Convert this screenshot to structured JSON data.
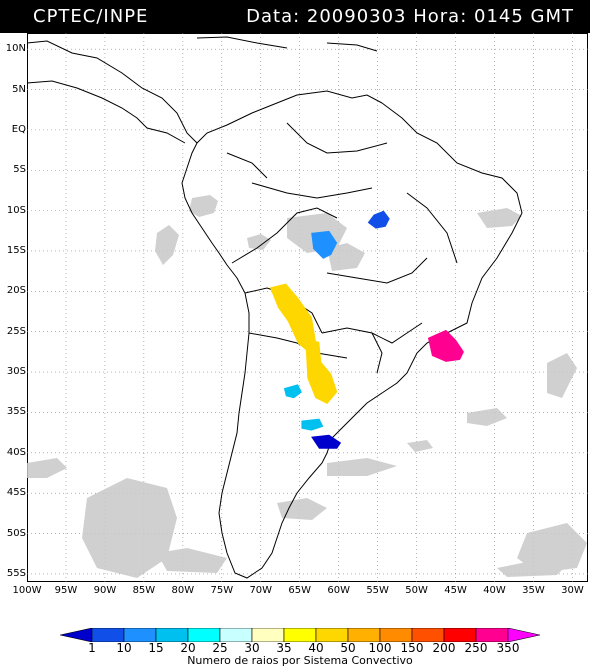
{
  "header": {
    "org": "CPTEC/INPE",
    "stamp": "Data: 20090303 Hora: 0145 GMT"
  },
  "axes": {
    "lat_labels": [
      "10N",
      "5N",
      "EQ",
      "5S",
      "10S",
      "15S",
      "20S",
      "25S",
      "30S",
      "35S",
      "40S",
      "45S",
      "50S",
      "55S"
    ],
    "lon_labels": [
      "100W",
      "95W",
      "90W",
      "85W",
      "80W",
      "75W",
      "70W",
      "65W",
      "60W",
      "55W",
      "50W",
      "45W",
      "40W",
      "35W",
      "30W"
    ]
  },
  "legend": {
    "values": [
      "1",
      "10",
      "15",
      "20",
      "25",
      "30",
      "35",
      "40",
      "50",
      "100",
      "150",
      "200",
      "250",
      "350"
    ],
    "colors": [
      "#0000cc",
      "#1050e8",
      "#1e90ff",
      "#00c0f0",
      "#00ffff",
      "#c8ffff",
      "#ffffc0",
      "#ffff00",
      "#ffd700",
      "#ffb000",
      "#ff8c00",
      "#ff5000",
      "#ff0000",
      "#ff0090",
      "#ff00ff"
    ],
    "caption": "Numero de raios por Sistema Convectivo"
  },
  "systems": [
    {
      "label": "blue-central-brazil",
      "color": "#1050e8",
      "lon": -55.5,
      "lat": -10.5
    },
    {
      "label": "light-blue-bolivia",
      "color": "#1e90ff",
      "lon": -62.5,
      "lat": -13.5
    },
    {
      "label": "yellow-chile-argentina",
      "color": "#ffd700",
      "lon": -66,
      "lat": -22
    },
    {
      "label": "yellow-argentina-south",
      "color": "#ffd700",
      "lon": -63,
      "lat": -29.5
    },
    {
      "label": "magenta-south-brazil",
      "color": "#ff0090",
      "lon": -47,
      "lat": -26.5
    },
    {
      "label": "cyan-argentina-1",
      "color": "#00c0f0",
      "lon": -66,
      "lat": -32.5
    },
    {
      "label": "cyan-argentina-2",
      "color": "#00c0f0",
      "lon": -63.5,
      "lat": -36.5
    },
    {
      "label": "dark-blue-argentina",
      "color": "#0000cc",
      "lon": -62,
      "lat": -38.5
    }
  ]
}
